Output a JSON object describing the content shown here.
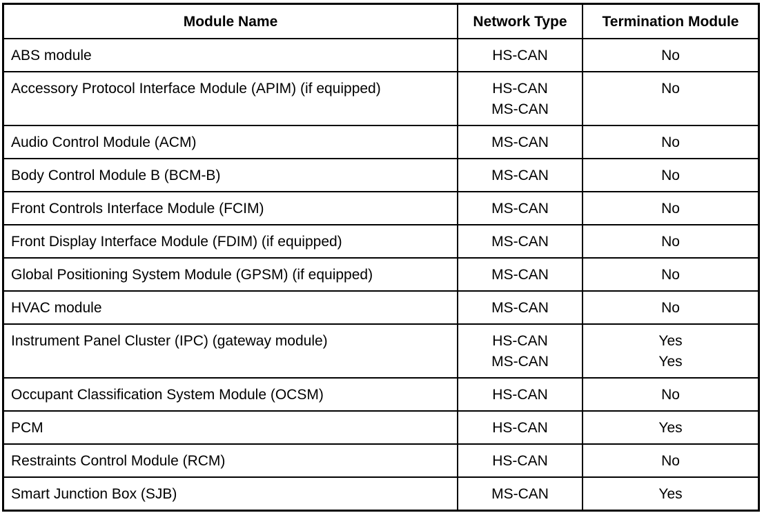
{
  "table": {
    "headers": [
      "Module Name",
      "Network Type",
      "Termination Module"
    ],
    "rows": [
      {
        "module": [
          "ABS module"
        ],
        "network": [
          "HS-CAN"
        ],
        "termination": [
          "No"
        ]
      },
      {
        "module": [
          "Accessory Protocol Interface Module (APIM) (if equipped)"
        ],
        "network": [
          "HS-CAN",
          "MS-CAN"
        ],
        "termination": [
          "No"
        ]
      },
      {
        "module": [
          "Audio Control Module (ACM)"
        ],
        "network": [
          "MS-CAN"
        ],
        "termination": [
          "No"
        ]
      },
      {
        "module": [
          "Body Control Module B (BCM-B)"
        ],
        "network": [
          "MS-CAN"
        ],
        "termination": [
          "No"
        ]
      },
      {
        "module": [
          "Front Controls Interface Module (FCIM)"
        ],
        "network": [
          "MS-CAN"
        ],
        "termination": [
          "No"
        ]
      },
      {
        "module": [
          "Front Display Interface Module (FDIM) (if equipped)"
        ],
        "network": [
          "MS-CAN"
        ],
        "termination": [
          "No"
        ]
      },
      {
        "module": [
          "Global Positioning System Module (GPSM) (if equipped)"
        ],
        "network": [
          "MS-CAN"
        ],
        "termination": [
          "No"
        ]
      },
      {
        "module": [
          "HVAC module"
        ],
        "network": [
          "MS-CAN"
        ],
        "termination": [
          "No"
        ]
      },
      {
        "module": [
          "Instrument Panel Cluster (IPC) (gateway module)"
        ],
        "network": [
          "HS-CAN",
          "MS-CAN"
        ],
        "termination": [
          "Yes",
          "Yes"
        ]
      },
      {
        "module": [
          "Occupant Classification System Module (OCSM)"
        ],
        "network": [
          "HS-CAN"
        ],
        "termination": [
          "No"
        ]
      },
      {
        "module": [
          "PCM"
        ],
        "network": [
          "HS-CAN"
        ],
        "termination": [
          "Yes"
        ]
      },
      {
        "module": [
          "Restraints Control Module (RCM)"
        ],
        "network": [
          "HS-CAN"
        ],
        "termination": [
          "No"
        ]
      },
      {
        "module": [
          "Smart Junction Box (SJB)"
        ],
        "network": [
          "MS-CAN"
        ],
        "termination": [
          "Yes"
        ]
      }
    ]
  }
}
